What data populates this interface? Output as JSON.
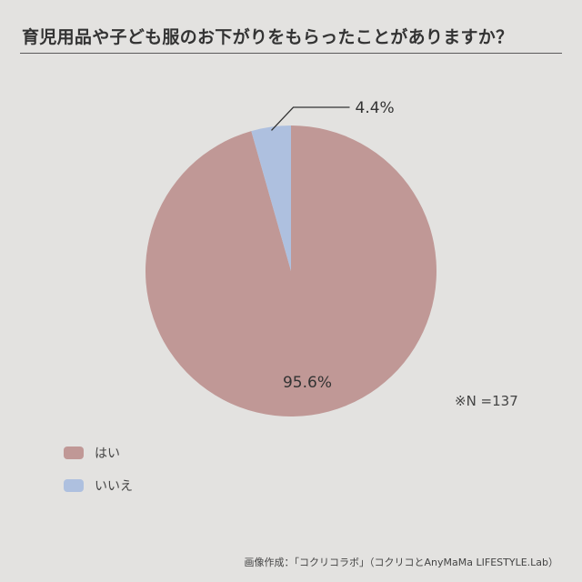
{
  "chart_data": {
    "type": "pie",
    "title": "育児用品や子ども服のお下がりをもらったことがありますか？",
    "categories": [
      "はい",
      "いいえ"
    ],
    "values": [
      95.6,
      4.4
    ],
    "unit": "%",
    "data_labels": [
      "95.6%",
      "4.4%"
    ],
    "colors": [
      "#c09896",
      "#aec0df"
    ],
    "start_angle_deg": 0,
    "direction": "clockwise",
    "legend_position": "bottom-left"
  },
  "note": "※N =137",
  "credit": "画像作成：「コクリコラボ」（コクリコとAnyMaMa LIFESTYLE.Lab）",
  "colors": {
    "background": "#e3e2e0",
    "leader_line": "#333333"
  }
}
